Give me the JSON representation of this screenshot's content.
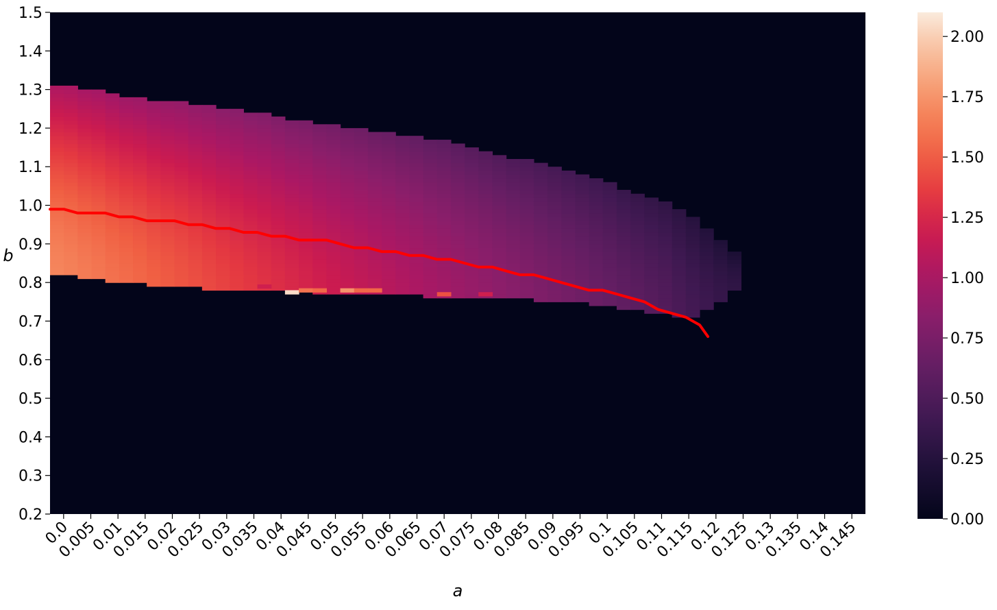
{
  "chart_data": {
    "type": "heatmap",
    "title": "",
    "xlabel": "a",
    "ylabel": "b",
    "x_ticks": [
      "0.0",
      "0.005",
      "0.01",
      "0.015",
      "0.02",
      "0.025",
      "0.03",
      "0.035",
      "0.04",
      "0.045",
      "0.05",
      "0.055",
      "0.06",
      "0.065",
      "0.07",
      "0.075",
      "0.08",
      "0.085",
      "0.09",
      "0.095",
      "0.1",
      "0.105",
      "0.11",
      "0.115",
      "0.12",
      "0.125",
      "0.13",
      "0.135",
      "0.14",
      "0.145"
    ],
    "y_ticks": [
      "1.5",
      "1.4",
      "1.3",
      "1.2",
      "1.1",
      "1.0",
      "0.9",
      "0.8",
      "0.7",
      "0.6",
      "0.5",
      "0.4",
      "0.3",
      "0.2"
    ],
    "xlim": [
      0.0,
      0.1475
    ],
    "ylim": [
      0.2,
      1.5
    ],
    "cell": {
      "a_step": 0.0025,
      "b_step": 0.01
    },
    "colormap": "rocket",
    "colorbar": {
      "range": [
        0.0,
        2.1
      ],
      "ticks": [
        "0.00",
        "0.25",
        "0.50",
        "0.75",
        "1.00",
        "1.25",
        "1.50",
        "1.75",
        "2.00"
      ],
      "tick_values": [
        0.0,
        0.25,
        0.5,
        0.75,
        1.0,
        1.25,
        1.5,
        1.75,
        2.0
      ]
    },
    "region": {
      "description_values": "nonzero region; value highest at left (~1.55) decreasing to ~0.3 at right edge",
      "a_max": 0.1225,
      "upper_boundary": [
        [
          0.0,
          1.3
        ],
        [
          0.01,
          1.28
        ],
        [
          0.02,
          1.26
        ],
        [
          0.03,
          1.24
        ],
        [
          0.04,
          1.22
        ],
        [
          0.05,
          1.2
        ],
        [
          0.06,
          1.18
        ],
        [
          0.07,
          1.16
        ],
        [
          0.08,
          1.12
        ],
        [
          0.09,
          1.09
        ],
        [
          0.1,
          1.05
        ],
        [
          0.105,
          1.02
        ],
        [
          0.11,
          1.0
        ],
        [
          0.115,
          0.96
        ],
        [
          0.12,
          0.9
        ],
        [
          0.1225,
          0.87
        ]
      ],
      "lower_boundary": [
        [
          0.0,
          0.82
        ],
        [
          0.01,
          0.8
        ],
        [
          0.02,
          0.79
        ],
        [
          0.03,
          0.78
        ],
        [
          0.04,
          0.78
        ],
        [
          0.05,
          0.77
        ],
        [
          0.06,
          0.77
        ],
        [
          0.07,
          0.76
        ],
        [
          0.08,
          0.76
        ],
        [
          0.09,
          0.75
        ],
        [
          0.1,
          0.74
        ],
        [
          0.105,
          0.73
        ],
        [
          0.11,
          0.72
        ],
        [
          0.115,
          0.71
        ],
        [
          0.12,
          0.75
        ],
        [
          0.1225,
          0.78
        ]
      ],
      "highlight_cells": [
        [
          0.0425,
          0.77,
          2.05
        ],
        [
          0.045,
          0.775,
          1.6
        ],
        [
          0.0475,
          0.775,
          1.55
        ],
        [
          0.0525,
          0.775,
          1.75
        ],
        [
          0.055,
          0.775,
          1.55
        ],
        [
          0.0575,
          0.775,
          1.55
        ],
        [
          0.07,
          0.765,
          1.45
        ],
        [
          0.0775,
          0.765,
          1.2
        ],
        [
          0.0375,
          0.785,
          1.2
        ]
      ]
    },
    "series": [
      {
        "color": "#ff0000",
        "x": [
          0.0,
          0.0025,
          0.005,
          0.0075,
          0.01,
          0.0125,
          0.015,
          0.0175,
          0.02,
          0.0225,
          0.025,
          0.0275,
          0.03,
          0.0325,
          0.035,
          0.0375,
          0.04,
          0.0425,
          0.045,
          0.0475,
          0.05,
          0.0525,
          0.055,
          0.0575,
          0.06,
          0.0625,
          0.065,
          0.0675,
          0.07,
          0.0725,
          0.075,
          0.0775,
          0.08,
          0.0825,
          0.085,
          0.0875,
          0.09,
          0.0925,
          0.095,
          0.0975,
          0.1,
          0.1025,
          0.105,
          0.1075,
          0.11,
          0.1125,
          0.115,
          0.1175
        ],
        "y": [
          0.99,
          0.99,
          0.98,
          0.98,
          0.98,
          0.97,
          0.97,
          0.96,
          0.96,
          0.96,
          0.95,
          0.95,
          0.94,
          0.94,
          0.93,
          0.93,
          0.92,
          0.92,
          0.91,
          0.91,
          0.91,
          0.9,
          0.89,
          0.89,
          0.88,
          0.88,
          0.87,
          0.87,
          0.86,
          0.86,
          0.85,
          0.84,
          0.84,
          0.83,
          0.82,
          0.82,
          0.81,
          0.8,
          0.79,
          0.78,
          0.78,
          0.77,
          0.76,
          0.75,
          0.73,
          0.72,
          0.71,
          0.69
        ]
      }
    ],
    "line_end": [
      0.119,
      0.66
    ]
  }
}
